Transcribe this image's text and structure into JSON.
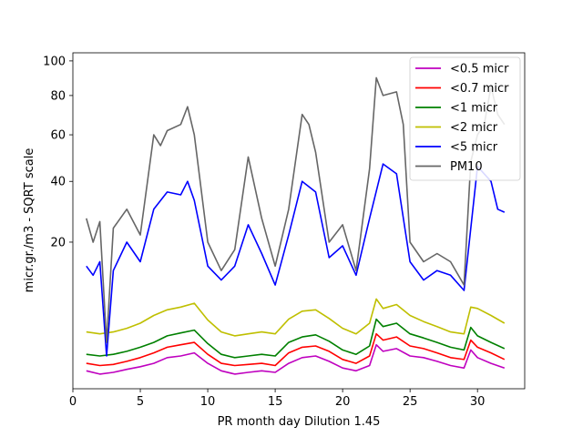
{
  "chart_data": {
    "type": "line",
    "xlabel": "PR month day  Dilution 1.45",
    "ylabel": "micr.gr./m3 - SQRT scale",
    "y_scale": "sqrt",
    "xlim": [
      0,
      33.5
    ],
    "ylim": [
      0,
      105
    ],
    "x_ticks": [
      0,
      5,
      10,
      15,
      20,
      25,
      30
    ],
    "y_ticks": [
      20,
      40,
      60,
      80,
      100
    ],
    "grid": false,
    "legend_position": "top-right",
    "series": [
      {
        "name": "<0.5 micr",
        "color": "#bf00bf",
        "x": [
          1,
          2,
          3,
          4,
          5,
          6,
          7,
          8,
          9,
          10,
          11,
          12,
          13,
          14,
          15,
          16,
          17,
          18,
          19,
          20,
          21,
          22,
          22.5,
          23,
          24,
          25,
          26,
          27,
          28,
          29,
          29.5,
          30,
          31,
          32
        ],
        "y": [
          0.3,
          0.2,
          0.25,
          0.35,
          0.45,
          0.6,
          0.9,
          1.0,
          1.2,
          0.6,
          0.3,
          0.2,
          0.25,
          0.3,
          0.25,
          0.6,
          0.9,
          1.0,
          0.7,
          0.4,
          0.3,
          0.5,
          1.8,
          1.3,
          1.5,
          1.0,
          0.9,
          0.7,
          0.5,
          0.4,
          1.4,
          0.9,
          0.6,
          0.4
        ]
      },
      {
        "name": "<0.7 micr",
        "color": "#ff0000",
        "x": [
          1,
          2,
          3,
          4,
          5,
          6,
          7,
          8,
          9,
          10,
          11,
          12,
          13,
          14,
          15,
          16,
          17,
          18,
          19,
          20,
          21,
          22,
          22.5,
          23,
          24,
          25,
          26,
          27,
          28,
          29,
          29.5,
          30,
          31,
          32
        ],
        "y": [
          0.6,
          0.5,
          0.55,
          0.7,
          0.9,
          1.2,
          1.6,
          1.8,
          2.0,
          1.1,
          0.6,
          0.5,
          0.55,
          0.6,
          0.5,
          1.2,
          1.6,
          1.7,
          1.3,
          0.8,
          0.6,
          1.0,
          2.8,
          2.2,
          2.5,
          1.7,
          1.5,
          1.2,
          0.9,
          0.8,
          2.2,
          1.6,
          1.2,
          0.8
        ]
      },
      {
        "name": "<1 micr",
        "color": "#008000",
        "x": [
          1,
          2,
          3,
          4,
          5,
          6,
          7,
          8,
          9,
          10,
          11,
          12,
          13,
          14,
          15,
          16,
          17,
          18,
          19,
          20,
          21,
          22,
          22.5,
          23,
          24,
          25,
          26,
          27,
          28,
          29,
          29.5,
          30,
          31,
          32
        ],
        "y": [
          1.1,
          1.0,
          1.1,
          1.3,
          1.6,
          2.0,
          2.6,
          2.9,
          3.2,
          1.9,
          1.1,
          0.9,
          1.0,
          1.1,
          1.0,
          2.0,
          2.5,
          2.7,
          2.1,
          1.4,
          1.1,
          1.7,
          4.5,
          3.6,
          4.0,
          2.8,
          2.4,
          2.0,
          1.6,
          1.4,
          3.5,
          2.6,
          2.0,
          1.5
        ]
      },
      {
        "name": "<2 micr",
        "color": "#bfbf00",
        "x": [
          1,
          2,
          3,
          4,
          5,
          6,
          7,
          8,
          9,
          10,
          11,
          12,
          13,
          14,
          15,
          16,
          17,
          18,
          19,
          20,
          21,
          22,
          22.5,
          23,
          24,
          25,
          26,
          27,
          28,
          29,
          29.5,
          30,
          31,
          32
        ],
        "y": [
          3.0,
          2.8,
          3.0,
          3.4,
          4.0,
          5.0,
          5.8,
          6.2,
          6.8,
          4.4,
          3.0,
          2.6,
          2.8,
          3.0,
          2.8,
          4.5,
          5.6,
          5.8,
          4.6,
          3.4,
          2.8,
          4.0,
          7.5,
          6.0,
          6.6,
          5.0,
          4.2,
          3.6,
          3.0,
          2.8,
          6.2,
          6.0,
          5.0,
          4.0
        ]
      },
      {
        "name": "<5 micr",
        "color": "#0000ff",
        "x": [
          1,
          1.5,
          2,
          2.5,
          3,
          4,
          5,
          6,
          7,
          8,
          8.5,
          9,
          10,
          11,
          12,
          13,
          14,
          15,
          16,
          17,
          18,
          19,
          20,
          21,
          22,
          23,
          24,
          25,
          26,
          27,
          28,
          29,
          30,
          31,
          31.5,
          32
        ],
        "y": [
          14,
          12,
          15,
          1,
          13,
          20,
          15,
          30,
          36,
          35,
          40,
          33,
          14,
          11,
          14,
          25,
          17,
          10,
          22,
          40,
          36,
          16,
          19,
          12,
          27,
          47,
          43,
          15,
          11,
          13,
          12,
          9,
          46,
          40,
          30,
          29
        ]
      },
      {
        "name": "PM10",
        "color": "#666666",
        "x": [
          1,
          1.5,
          2,
          2.5,
          3,
          4,
          5,
          6,
          6.5,
          7,
          8,
          8.5,
          9,
          10,
          11,
          12,
          13,
          14,
          15,
          16,
          17,
          17.5,
          18,
          19,
          20,
          21,
          22,
          22.5,
          23,
          24,
          24.5,
          25,
          26,
          27,
          28,
          29,
          29.5,
          30,
          30.5,
          31,
          31.5,
          32
        ],
        "y": [
          27,
          20,
          26,
          2,
          24,
          30,
          22,
          60,
          55,
          62,
          65,
          74,
          60,
          20,
          13,
          18,
          50,
          27,
          14,
          30,
          70,
          65,
          52,
          20,
          25,
          13,
          45,
          90,
          80,
          82,
          65,
          20,
          15,
          17,
          15,
          10,
          48,
          60,
          65,
          85,
          70,
          65
        ]
      }
    ]
  }
}
